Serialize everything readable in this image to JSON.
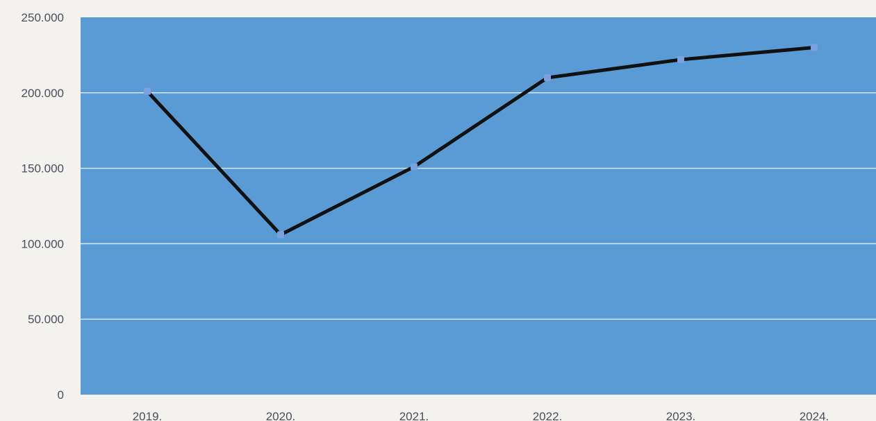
{
  "colors": {
    "page_background": "#f3f2ef",
    "plot_background": "#5b9bd5",
    "gridline": "#d7e7f6",
    "line": "#111111",
    "marker": "#7aa0e0",
    "tick_text": "#4a4f5c"
  },
  "chart_data": {
    "type": "line",
    "categories": [
      "2019.",
      "2020.",
      "2021.",
      "2022.",
      "2023.",
      "2024."
    ],
    "series": [
      {
        "values": [
          201000,
          106000,
          151000,
          210000,
          222000,
          230000
        ]
      }
    ],
    "ylim": [
      0,
      250000
    ],
    "yticks": [
      0,
      50000,
      100000,
      150000,
      200000,
      250000
    ],
    "ytick_labels": [
      "0",
      "50.000",
      "100.000",
      "150.000",
      "200.000",
      "250.000"
    ],
    "grid": true,
    "legend": "none"
  }
}
